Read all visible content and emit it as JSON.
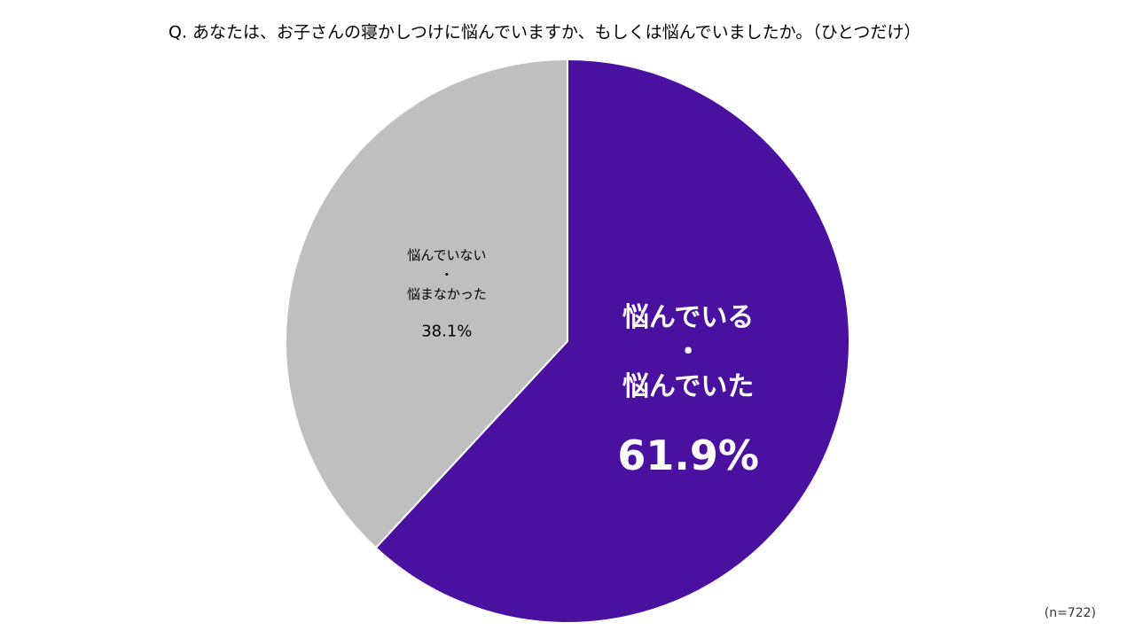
{
  "chart_data": {
    "type": "pie",
    "title": "Q.  あなたは、お子さんの寝かしつけに悩んでいますか、もしくは悩んでいましたか。（ひとつだけ）",
    "categories": [
      [
        "悩んでいる",
        "・",
        "悩んでいた"
      ],
      [
        "悩んでいない",
        "・",
        "悩まなかった"
      ]
    ],
    "values": [
      61.9,
      38.1
    ],
    "value_labels": [
      "61.9%",
      "38.1%"
    ],
    "colors": [
      "#4a10a0",
      "#bfbfbf"
    ],
    "note": "(n=722)"
  }
}
